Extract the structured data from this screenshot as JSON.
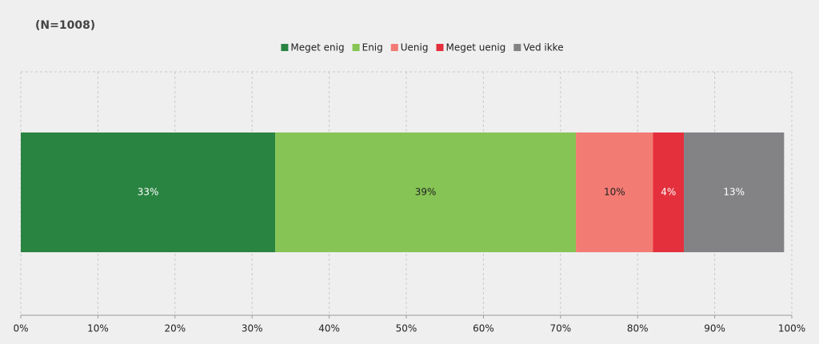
{
  "chart_data": {
    "type": "stacked-bar",
    "orientation": "horizontal",
    "title": "(N=1008)",
    "series": [
      {
        "name": "Meget enig",
        "color": "#2a8441",
        "label_color": "#ffffff",
        "values": [
          33
        ],
        "value_labels": [
          "33%"
        ]
      },
      {
        "name": "Enig",
        "color": "#86c455",
        "label_color": "#222222",
        "values": [
          39
        ],
        "value_labels": [
          "39%"
        ]
      },
      {
        "name": "Uenig",
        "color": "#f27b73",
        "label_color": "#222222",
        "values": [
          10
        ],
        "value_labels": [
          "10%"
        ]
      },
      {
        "name": "Meget uenig",
        "color": "#e3303c",
        "label_color": "#ffffff",
        "values": [
          4
        ],
        "value_labels": [
          "4%"
        ]
      },
      {
        "name": "Ved ikke",
        "color": "#838386",
        "label_color": "#ffffff",
        "values": [
          13
        ],
        "value_labels": [
          "13%"
        ]
      }
    ],
    "xlim": [
      0,
      100
    ],
    "xticks": [
      {
        "value": 0,
        "label": "0%"
      },
      {
        "value": 10,
        "label": "10%"
      },
      {
        "value": 20,
        "label": "20%"
      },
      {
        "value": 30,
        "label": "30%"
      },
      {
        "value": 40,
        "label": "40%"
      },
      {
        "value": 50,
        "label": "50%"
      },
      {
        "value": 60,
        "label": "60%"
      },
      {
        "value": 70,
        "label": "70%"
      },
      {
        "value": 80,
        "label": "80%"
      },
      {
        "value": 90,
        "label": "90%"
      },
      {
        "value": 100,
        "label": "100%"
      }
    ],
    "grid": true,
    "legend": "top"
  }
}
